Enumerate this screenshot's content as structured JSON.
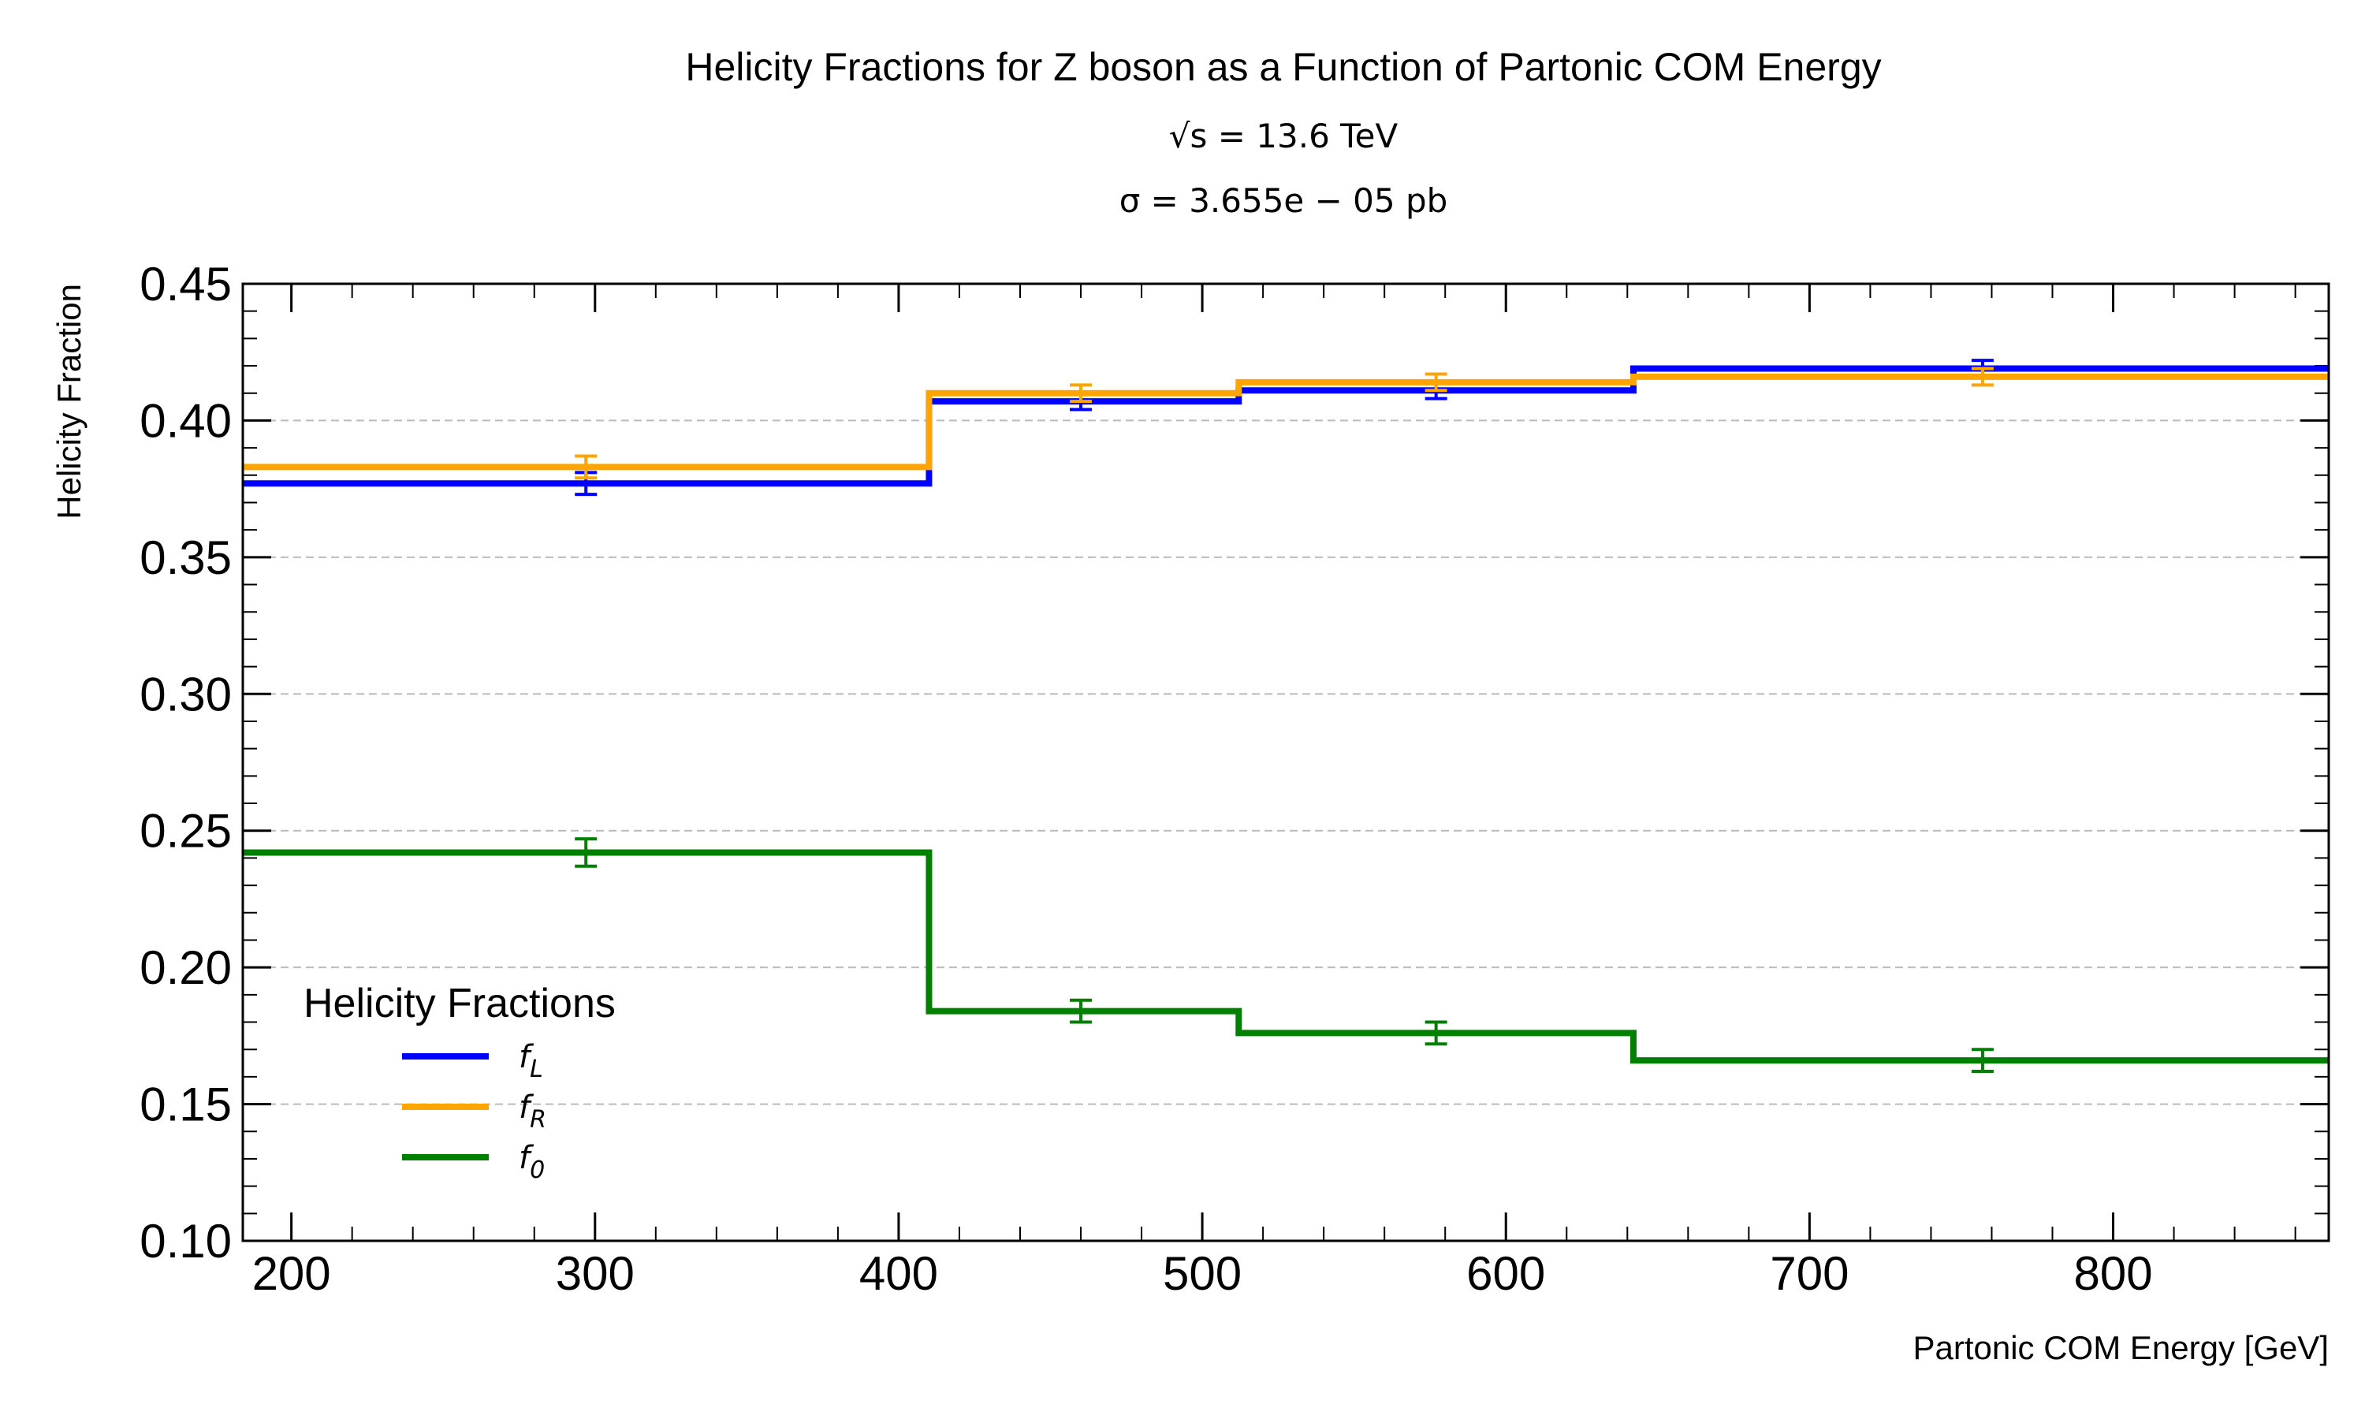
{
  "chart_data": {
    "type": "line",
    "step": true,
    "title": "Helicity Fractions for Z boson as a Function of Partonic COM Energy",
    "subtitle_lines": [
      "√s = 13.6 TeV",
      "σ = 3.655e − 05 pb"
    ],
    "xlabel": "Partonic COM Energy [GeV]",
    "ylabel": "Helicity Fraction",
    "xlim": [
      184,
      871
    ],
    "ylim": [
      0.1,
      0.45
    ],
    "x_ticks": [
      200,
      300,
      400,
      500,
      600,
      700,
      800
    ],
    "y_ticks": [
      0.1,
      0.15,
      0.2,
      0.25,
      0.3,
      0.35,
      0.4,
      0.45
    ],
    "y_tick_labels": [
      "0.10",
      "0.15",
      "0.20",
      "0.25",
      "0.30",
      "0.35",
      "0.40",
      "0.45"
    ],
    "grid": "horizontal dashed",
    "bin_edges": [
      184,
      410,
      512,
      642,
      871
    ],
    "bin_centers": [
      297,
      460,
      577,
      757
    ],
    "legend": {
      "title": "Helicity Fractions",
      "placement": "lower-left"
    },
    "series": [
      {
        "name": "f_L",
        "label_main": "f",
        "label_sub": "L",
        "color": "#0000ff",
        "values": [
          0.377,
          0.407,
          0.411,
          0.419
        ],
        "errors": [
          0.004,
          0.003,
          0.003,
          0.003
        ]
      },
      {
        "name": "f_R",
        "label_main": "f",
        "label_sub": "R",
        "color": "#ffa500",
        "values": [
          0.383,
          0.41,
          0.414,
          0.416
        ],
        "errors": [
          0.004,
          0.003,
          0.003,
          0.003
        ]
      },
      {
        "name": "f_0",
        "label_main": "f",
        "label_sub": "0",
        "color": "#008000",
        "values": [
          0.242,
          0.184,
          0.176,
          0.166
        ],
        "errors": [
          0.005,
          0.004,
          0.004,
          0.004
        ]
      }
    ]
  }
}
